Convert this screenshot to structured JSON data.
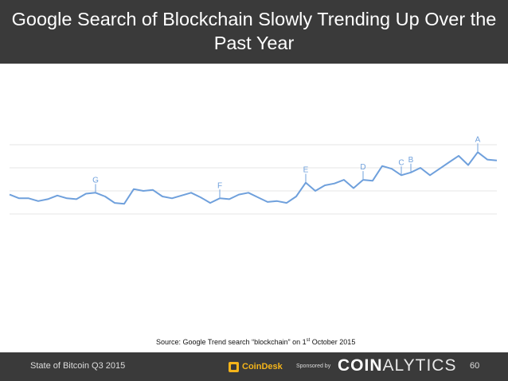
{
  "header": {
    "title": "Google Search of Blockchain Slowly Trending Up Over the Past Year"
  },
  "chart_data": {
    "type": "line",
    "title": "Google Search of Blockchain Slowly Trending Up Over the Past Year",
    "xlabel": "",
    "ylabel": "",
    "ylim": [
      0,
      100
    ],
    "grid": true,
    "gridlines": [
      25,
      50,
      75,
      100
    ],
    "series": [
      {
        "name": "blockchain",
        "color": "#6fa0dc",
        "values": [
          46,
          42,
          42,
          39,
          41,
          45,
          42,
          41,
          47,
          48,
          44,
          37,
          36,
          52,
          50,
          51,
          44,
          42,
          45,
          48,
          43,
          37,
          42,
          41,
          46,
          48,
          43,
          38,
          39,
          37,
          44,
          59,
          50,
          56,
          58,
          62,
          53,
          62,
          61,
          77,
          74,
          67,
          70,
          75,
          67,
          74,
          81,
          88,
          78,
          92,
          84,
          83
        ]
      }
    ],
    "annotations": [
      {
        "label": "G",
        "index": 9
      },
      {
        "label": "F",
        "index": 22
      },
      {
        "label": "E",
        "index": 31
      },
      {
        "label": "D",
        "index": 37
      },
      {
        "label": "C",
        "index": 41
      },
      {
        "label": "B",
        "index": 42
      },
      {
        "label": "A",
        "index": 49
      }
    ],
    "source": "Source: Google Trend search “blockchain” on 1",
    "source_sup": "st",
    "source_end": " October 2015"
  },
  "footer": {
    "report": "State of Bitcoin Q3 2015",
    "coindesk": "CoinDesk",
    "sponsored": "Sponsored by",
    "brand_bold": "COIN",
    "brand_light": "ALYTICS",
    "page": "60"
  },
  "colors": {
    "bar": "#3a3a3a",
    "line": "#6fa0dc",
    "grid": "#e6e6e6",
    "accent": "#f4b41a"
  }
}
